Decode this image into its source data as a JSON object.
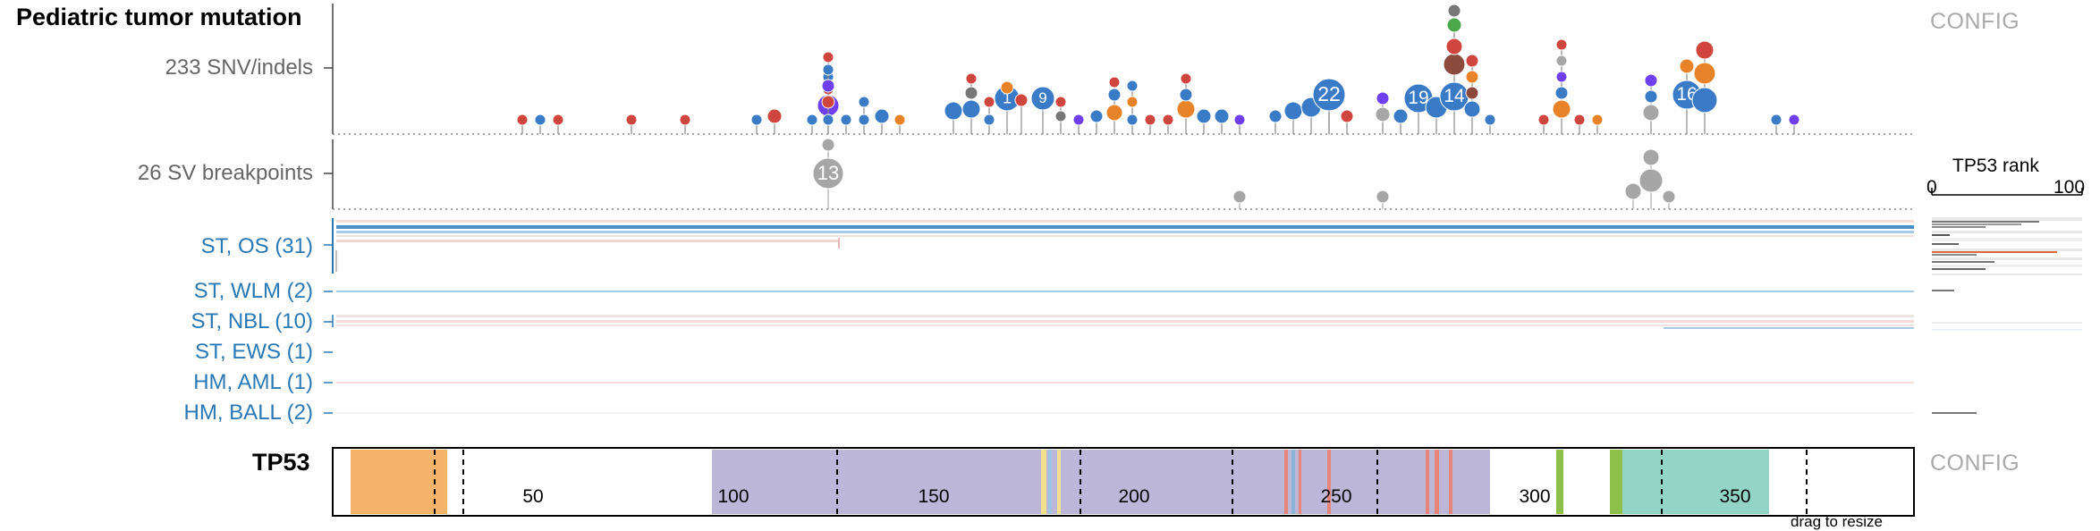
{
  "title": "Pediatric tumor mutation",
  "tracks": {
    "snv_label": "233 SNV/indels",
    "sv_label": "26 SV breakpoints"
  },
  "config_top": "CONFIG",
  "config_bottom": "CONFIG",
  "groups": [
    {
      "label": "ST, OS (31)"
    },
    {
      "label": "ST, WLM (2)"
    },
    {
      "label": "ST, NBL (10)"
    },
    {
      "label": "ST, EWS (1)"
    },
    {
      "label": "HM, AML (1)"
    },
    {
      "label": "HM, BALL (2)"
    }
  ],
  "rank": {
    "title": "TP53 rank",
    "min": "0",
    "max": "100"
  },
  "protein": {
    "name": "TP53",
    "length": 393,
    "ticks": [
      "50",
      "100",
      "150",
      "200",
      "250",
      "300",
      "350"
    ],
    "hint": "drag to resize"
  },
  "colors": {
    "missense": "#3a7bc8",
    "truncating": "#d0453e",
    "frameshift": "#e8832a",
    "splice": "#6f40f0",
    "deletion": "#8b4a3c",
    "silent": "#4aa84a",
    "other": "#777777",
    "sv": "#a6a6a6",
    "group_label": "#2a78b5",
    "domain_orange": "#f3b46a",
    "domain_purple": "#bcb7d8",
    "domain_teal": "#92d4c6"
  },
  "bubble_labels": [
    "1",
    "9",
    "22",
    "19",
    "14",
    "16",
    "13"
  ]
}
